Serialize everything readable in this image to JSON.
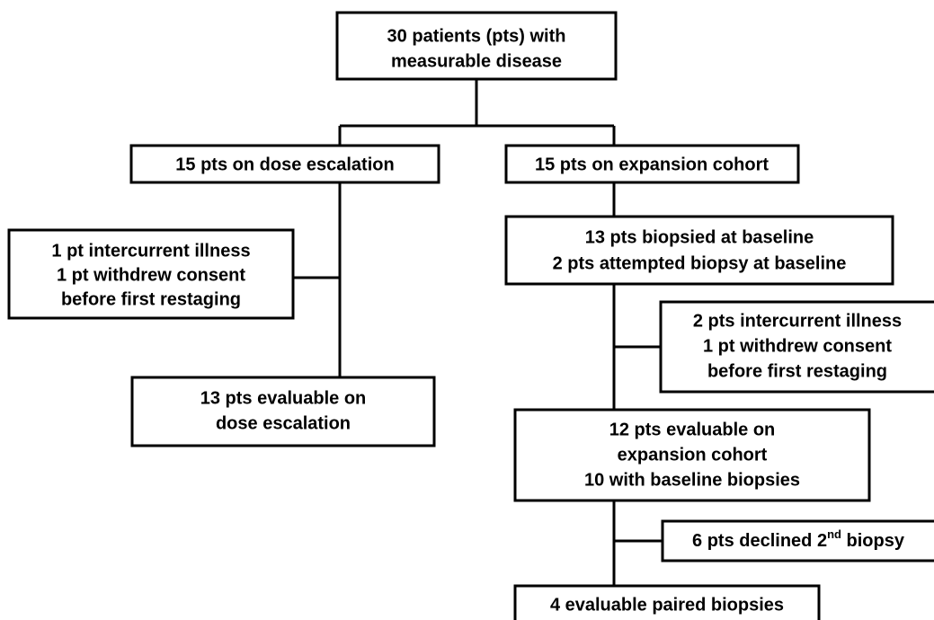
{
  "nodes": [
    {
      "lines": [
        "30 patients (pts) with",
        "measurable disease"
      ]
    },
    {
      "lines": [
        "15 pts on dose escalation"
      ]
    },
    {
      "lines": [
        "15 pts on expansion cohort"
      ]
    },
    {
      "lines": [
        "1 pt intercurrent illness",
        "1 pt withdrew consent",
        "before first restaging"
      ]
    },
    {
      "lines": [
        "13 pts biopsied at baseline",
        "2 pts attempted biopsy at baseline"
      ]
    },
    {
      "lines": [
        "13 pts evaluable on",
        "dose escalation"
      ]
    },
    {
      "lines": [
        "2 pts intercurrent illness",
        "1 pt withdrew consent",
        "before first restaging"
      ]
    },
    {
      "lines": [
        "12 pts evaluable on",
        "expansion cohort",
        "10 with baseline biopsies"
      ]
    },
    {
      "text": "6 pts declined 2",
      "superscript": "nd",
      "text_after": " biopsy"
    },
    {
      "lines": [
        "4 evaluable paired biopsies"
      ]
    }
  ]
}
